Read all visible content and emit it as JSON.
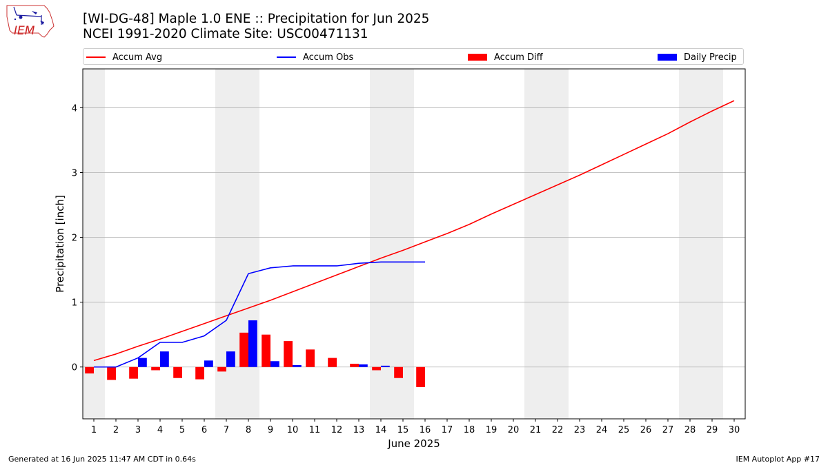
{
  "header": {
    "title_line1": "[WI-DG-48] Maple 1.0 ENE :: Precipitation for Jun 2025",
    "title_line2": "NCEI 1991-2020 Climate Site: USC00471131",
    "logo_text": "IEM"
  },
  "legend": {
    "accum_avg": "Accum Avg",
    "accum_obs": "Accum Obs",
    "accum_diff": "Accum Diff",
    "daily_precip": "Daily Precip"
  },
  "colors": {
    "accum_avg": "#ff0000",
    "accum_obs": "#0000ff",
    "accum_diff": "#ff0000",
    "daily_precip": "#0000ff",
    "weekend_shade": "#eeeeee",
    "grid": "#b0b0b0"
  },
  "footer": {
    "generated": "Generated at 16 Jun 2025 11:47 AM CDT in 0.64s",
    "app": "IEM Autoplot App #17"
  },
  "chart_data": {
    "type": "bar",
    "xlabel": "June 2025",
    "ylabel": "Precipitation [inch]",
    "xlim": [
      0.5,
      30.5
    ],
    "ylim": [
      -0.8,
      4.6
    ],
    "yticks": [
      0,
      1,
      2,
      3,
      4
    ],
    "ygrid": true,
    "legend_position": "top",
    "days": [
      1,
      2,
      3,
      4,
      5,
      6,
      7,
      8,
      9,
      10,
      11,
      12,
      13,
      14,
      15,
      16,
      17,
      18,
      19,
      20,
      21,
      22,
      23,
      24,
      25,
      26,
      27,
      28,
      29,
      30
    ],
    "shaded_days": [
      [
        0.5,
        1.5
      ],
      [
        6.5,
        8.5
      ],
      [
        13.5,
        15.5
      ],
      [
        20.5,
        22.5
      ],
      [
        27.5,
        29.5
      ]
    ],
    "series": [
      {
        "name": "Accum Avg",
        "kind": "line",
        "x": [
          1,
          2,
          3,
          4,
          5,
          6,
          7,
          8,
          9,
          10,
          11,
          12,
          13,
          14,
          15,
          16,
          17,
          18,
          19,
          20,
          21,
          22,
          23,
          24,
          25,
          26,
          27,
          28,
          29,
          30
        ],
        "values": [
          0.1,
          0.2,
          0.32,
          0.43,
          0.55,
          0.67,
          0.79,
          0.91,
          1.03,
          1.16,
          1.29,
          1.42,
          1.55,
          1.68,
          1.8,
          1.93,
          2.06,
          2.2,
          2.36,
          2.51,
          2.66,
          2.81,
          2.96,
          3.12,
          3.28,
          3.44,
          3.6,
          3.78,
          3.95,
          4.11
        ]
      },
      {
        "name": "Accum Obs",
        "kind": "line",
        "x": [
          1,
          2,
          3,
          4,
          5,
          6,
          7,
          8,
          9,
          10,
          11,
          12,
          13,
          14,
          15,
          16
        ],
        "values": [
          0,
          0,
          0.14,
          0.38,
          0.38,
          0.48,
          0.72,
          1.44,
          1.53,
          1.56,
          1.56,
          1.56,
          1.6,
          1.62,
          1.62,
          1.62
        ]
      },
      {
        "name": "Accum Diff",
        "kind": "bar",
        "x": [
          1,
          2,
          3,
          4,
          5,
          6,
          7,
          8,
          9,
          10,
          11,
          12,
          13,
          14,
          15,
          16
        ],
        "values": [
          -0.1,
          -0.2,
          -0.18,
          -0.05,
          -0.17,
          -0.19,
          -0.07,
          0.53,
          0.5,
          0.4,
          0.27,
          0.14,
          0.05,
          -0.05,
          -0.17,
          -0.31
        ]
      },
      {
        "name": "Daily Precip",
        "kind": "bar",
        "x": [
          1,
          2,
          3,
          4,
          5,
          6,
          7,
          8,
          9,
          10,
          11,
          12,
          13,
          14,
          15,
          16
        ],
        "values": [
          0,
          0,
          0.14,
          0.24,
          0,
          0.1,
          0.24,
          0.72,
          0.09,
          0.03,
          0,
          0,
          0.04,
          0.02,
          0,
          0
        ]
      }
    ]
  }
}
